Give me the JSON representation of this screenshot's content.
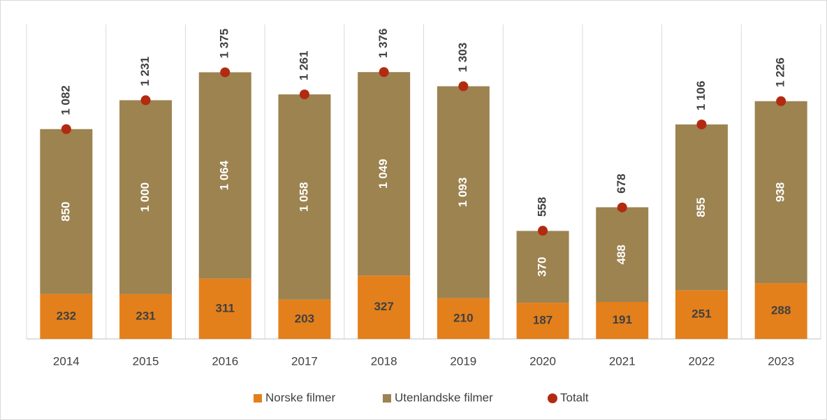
{
  "chart_data": {
    "type": "bar",
    "stacked": true,
    "categories": [
      "2014",
      "2015",
      "2016",
      "2017",
      "2018",
      "2019",
      "2020",
      "2021",
      "2022",
      "2023"
    ],
    "series": [
      {
        "name": "Norske filmer",
        "color": "#e3801c",
        "values": [
          232,
          231,
          311,
          203,
          327,
          210,
          187,
          191,
          251,
          288
        ]
      },
      {
        "name": "Utenlandske filmer",
        "color": "#9c8350",
        "values": [
          850,
          1000,
          1064,
          1058,
          1049,
          1093,
          370,
          488,
          855,
          938
        ],
        "value_labels": [
          "850",
          "1 000",
          "1 064",
          "1 058",
          "1 049",
          "1 093",
          "370",
          "488",
          "855",
          "938"
        ]
      },
      {
        "name": "Totalt",
        "type": "scatter",
        "color": "#b22a10",
        "values": [
          1082,
          1231,
          1375,
          1261,
          1376,
          1303,
          558,
          678,
          1106,
          1226
        ],
        "value_labels": [
          "1 082",
          "1 231",
          "1 375",
          "1 261",
          "1 376",
          "1 303",
          "558",
          "678",
          "1 106",
          "1 226"
        ]
      }
    ],
    "ylim": [
      0,
      1600
    ],
    "legend": "bottom"
  }
}
